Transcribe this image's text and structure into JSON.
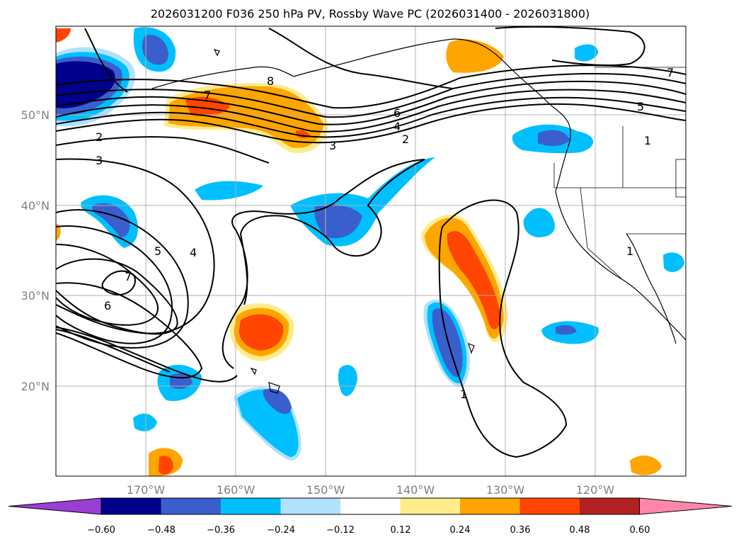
{
  "title": "2026031200 F036 250 hPa PV, Rossby Wave PC (2026031400 - 2026031800)",
  "lat_labels": [
    "50°N",
    "40°N",
    "30°N",
    "20°N"
  ],
  "lon_labels": [
    "170°W",
    "160°W",
    "150°W",
    "140°W",
    "130°W",
    "120°W"
  ],
  "contour_labels": [
    "8",
    "7",
    "6",
    "4",
    "2",
    "3",
    "2",
    "3",
    "5",
    "4",
    "7",
    "6",
    "1",
    "5",
    "1",
    "7",
    "1"
  ],
  "colorbar": {
    "ticks": [
      "−0.60",
      "−0.48",
      "−0.36",
      "−0.24",
      "−0.12",
      "0.12",
      "0.24",
      "0.36",
      "0.48",
      "0.60"
    ],
    "colors": [
      "#9a3fd6",
      "#00008b",
      "#3a5fcd",
      "#00bfff",
      "#b0e2ff",
      "#ffffff",
      "#ffec8b",
      "#ffa500",
      "#ff4500",
      "#b22222",
      "#ff88aa"
    ]
  },
  "map_extent": {
    "lon_min": -180,
    "lon_max": -110,
    "lat_min": 10,
    "lat_max": 60
  }
}
